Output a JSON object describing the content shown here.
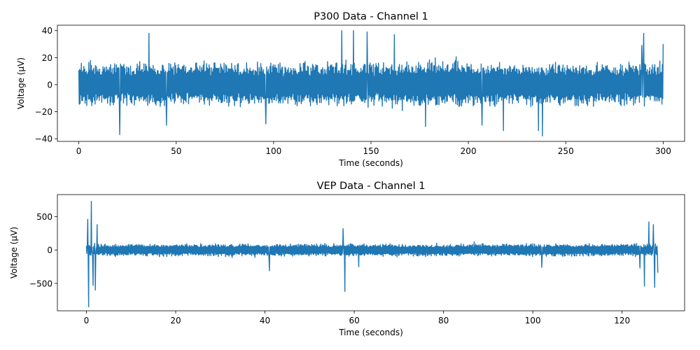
{
  "chart_data": [
    {
      "type": "line",
      "title": "P300 Data - Channel 1",
      "xlabel": "Time (seconds)",
      "ylabel": "Voltage (µV)",
      "xlim": [
        -11,
        311
      ],
      "ylim": [
        -42,
        44
      ],
      "xticks": [
        0,
        50,
        100,
        150,
        200,
        250,
        300
      ],
      "yticks": [
        -40,
        -20,
        0,
        20,
        40
      ],
      "xtick_labels": [
        "0",
        "50",
        "100",
        "150",
        "200",
        "250",
        "300"
      ],
      "ytick_labels": [
        "−40",
        "−20",
        "0",
        "20",
        "40"
      ],
      "grid": false,
      "series": [
        {
          "color": "#1f77b4",
          "x_range": [
            0,
            300
          ],
          "band": [
            -17,
            18
          ],
          "peaks": [
            [
              21,
              -37
            ],
            [
              36,
              38
            ],
            [
              45,
              -30
            ],
            [
              96,
              -29
            ],
            [
              135,
              40
            ],
            [
              141,
              40
            ],
            [
              148,
              39
            ],
            [
              162,
              37
            ],
            [
              178,
              -31
            ],
            [
              207,
              -30
            ],
            [
              218,
              -34
            ],
            [
              236,
              -34
            ],
            [
              238,
              -38
            ],
            [
              289,
              29
            ],
            [
              290,
              38
            ],
            [
              300,
              30
            ]
          ]
        }
      ]
    },
    {
      "type": "line",
      "title": "VEP Data - Channel 1",
      "xlabel": "Time (seconds)",
      "ylabel": "Voltage (µV)",
      "xlim": [
        -6.5,
        134
      ],
      "ylim": [
        -910,
        830
      ],
      "xticks": [
        0,
        20,
        40,
        60,
        80,
        100,
        120
      ],
      "yticks": [
        -500,
        0,
        500
      ],
      "xtick_labels": [
        "0",
        "20",
        "40",
        "60",
        "80",
        "100",
        "120"
      ],
      "ytick_labels": [
        "−500",
        "0",
        "500"
      ],
      "grid": false,
      "series": [
        {
          "color": "#1f77b4",
          "x_range": [
            0,
            128
          ],
          "band": [
            -100,
            100
          ],
          "peaks": [
            [
              0.3,
              460
            ],
            [
              0.5,
              -850
            ],
            [
              1.1,
              730
            ],
            [
              1.5,
              -530
            ],
            [
              2.0,
              -600
            ],
            [
              2.4,
              380
            ],
            [
              41,
              -310
            ],
            [
              57.5,
              320
            ],
            [
              57.9,
              -620
            ],
            [
              61,
              -250
            ],
            [
              102,
              -260
            ],
            [
              124,
              -270
            ],
            [
              125,
              -540
            ],
            [
              126,
              420
            ],
            [
              127,
              380
            ],
            [
              127.3,
              -560
            ],
            [
              128,
              -340
            ]
          ]
        }
      ]
    }
  ]
}
